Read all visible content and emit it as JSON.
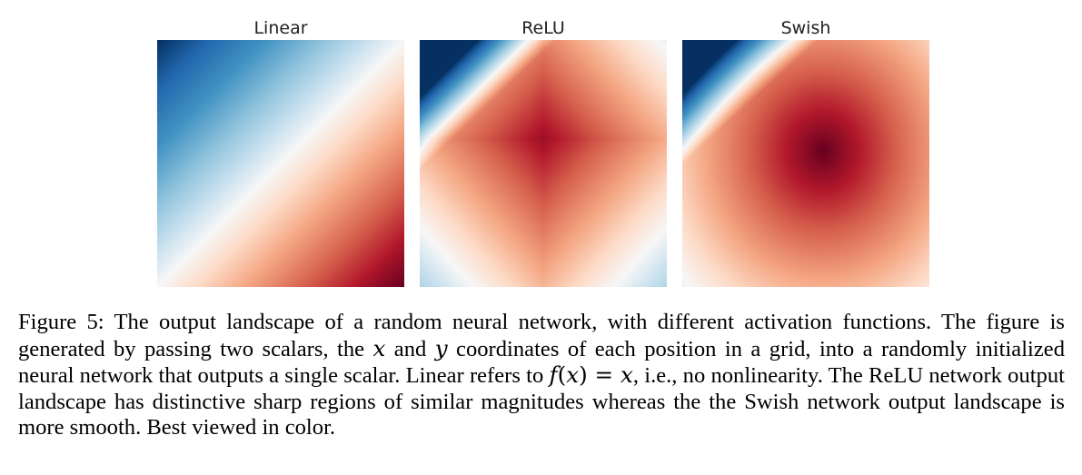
{
  "figure": {
    "panels": [
      {
        "title": "Linear",
        "kind": "linear"
      },
      {
        "title": "ReLU",
        "kind": "relu"
      },
      {
        "title": "Swish",
        "kind": "swish"
      }
    ],
    "colormap": {
      "name": "RdBu_r",
      "low": "#08519c",
      "mid": "#f7f7f7",
      "high": "#67001f"
    }
  },
  "caption": {
    "label": "Figure 5:",
    "seg1": " The output landscape of a random neural network, with different activation functions. The figure is generated by passing two scalars, the ",
    "var_x": "x",
    "seg2": " and ",
    "var_y": "y",
    "seg3": " coordinates of each position in a grid, into a randomly initialized neural network that outputs a single scalar. Linear refers to ",
    "math_f": "f",
    "math_paren_open": "(",
    "math_arg": "x",
    "math_paren_close": ")",
    "math_eq": " = ",
    "math_rhs": "x",
    "seg4": ", i.e., no nonlinearity. The ReLU network output landscape has distinctive sharp regions of similar magnitudes whereas the the Swish network output landscape is more smooth. Best viewed in color."
  }
}
